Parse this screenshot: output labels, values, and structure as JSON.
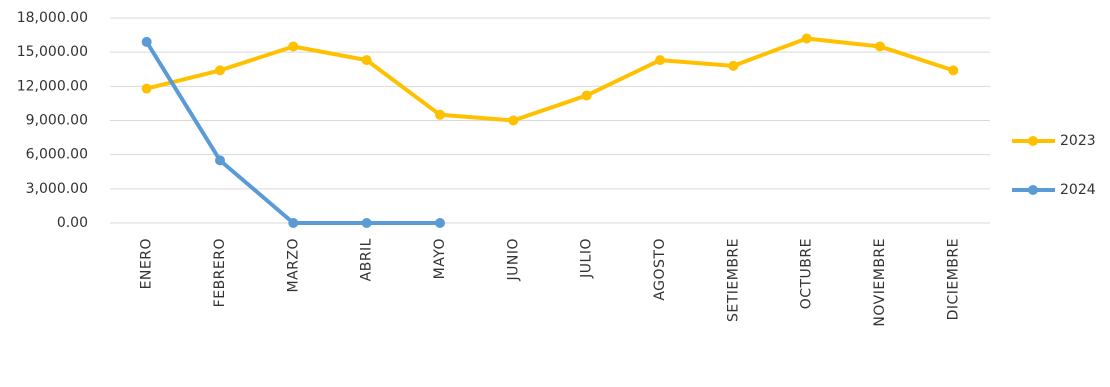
{
  "chart_data": {
    "type": "line",
    "categories": [
      "ENERO",
      "FEBRERO",
      "MARZO",
      "ABRIL",
      "MAYO",
      "JUNIO",
      "JULIO",
      "AGOSTO",
      "SETIEMBRE",
      "OCTUBRE",
      "NOVIEMBRE",
      "DICIEMBRE"
    ],
    "series": [
      {
        "name": "2023",
        "color": "#FFC000",
        "values": [
          11800,
          13400,
          15500,
          14300,
          9500,
          9000,
          11200,
          14300,
          13800,
          16200,
          15500,
          13400
        ]
      },
      {
        "name": "2024",
        "color": "#5B9BD5",
        "values": [
          15900,
          5500,
          0,
          0,
          0,
          null,
          null,
          null,
          null,
          null,
          null,
          null
        ]
      }
    ],
    "ylim": [
      0,
      18000
    ],
    "yticks": [
      {
        "value": 0,
        "label": "0.00"
      },
      {
        "value": 3000,
        "label": "3,000.00"
      },
      {
        "value": 6000,
        "label": "6,000.00"
      },
      {
        "value": 9000,
        "label": "9,000.00"
      },
      {
        "value": 12000,
        "label": "12,000.00"
      },
      {
        "value": 15000,
        "label": "15,000.00"
      },
      {
        "value": 18000,
        "label": "18,000.00"
      }
    ],
    "grid": true,
    "legend": "right"
  }
}
